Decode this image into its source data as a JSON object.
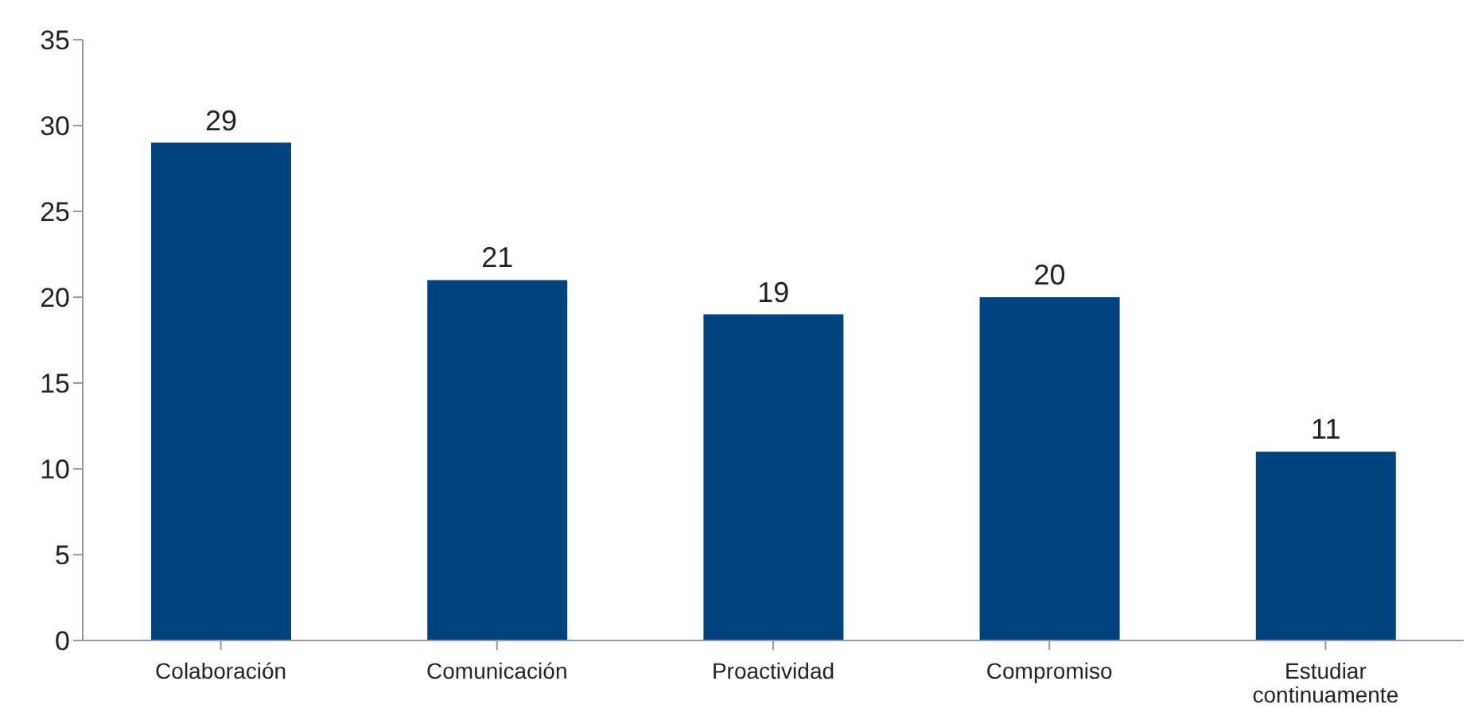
{
  "chart_data": {
    "type": "bar",
    "categories": [
      "Colaboración",
      "Comunicación",
      "Proactividad",
      "Compromiso",
      "Estudiar continuamente"
    ],
    "values": [
      29,
      21,
      19,
      20,
      11
    ],
    "color": "#00437f",
    "ylim": [
      0,
      35
    ],
    "yticks": [
      0,
      5,
      10,
      15,
      20,
      25,
      30,
      35
    ],
    "grid": false,
    "data_labels": true
  }
}
